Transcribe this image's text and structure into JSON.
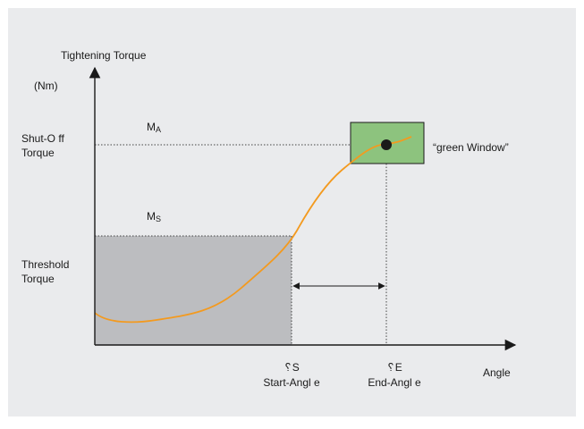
{
  "colors": {
    "panel": "#eaebed",
    "threshold_fill": "#bcbdc0",
    "window_fill": "#8dc37e",
    "window_stroke": "#1a1a1a",
    "curve": "#f39a1f",
    "axis": "#1a1a1a",
    "point": "#1a1a1a"
  },
  "y_axis": {
    "title": "Tightening Torque",
    "unit": "(Nm)",
    "shutoff_label_line1": "Shut-O ff",
    "shutoff_label_line2": "Torque",
    "threshold_label_line1": "Threshold",
    "threshold_label_line2": "Torque"
  },
  "x_axis": {
    "title": "Angle"
  },
  "markers": {
    "ma_main": "M",
    "ma_sub": "A",
    "ms_main": "M",
    "ms_sub": "S"
  },
  "angles": {
    "start_symbol": "␦S",
    "start_label": "Start-Angl e",
    "end_symbol": "␦E",
    "end_label": "End-Angl e"
  },
  "window_label": "“green Window”"
}
